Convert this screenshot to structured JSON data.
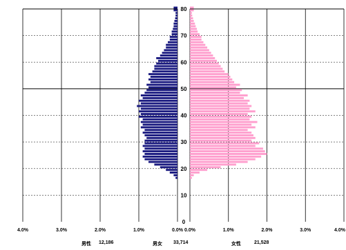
{
  "chart_data": {
    "type": "bar",
    "orientation": "horizontal",
    "layout": "population-pyramid",
    "grid": true,
    "age_ticks": [
      "0",
      "10",
      "20",
      "30",
      "40",
      "50",
      "60",
      "70",
      "80"
    ],
    "age_tick_values": [
      0,
      10,
      20,
      30,
      40,
      50,
      60,
      70,
      80
    ],
    "male_axis_ticks": [
      "4.0%",
      "3.0%",
      "2.0%",
      "1.0%",
      "0.0%"
    ],
    "female_axis_ticks": [
      "0.0%",
      "1.0%",
      "2.0%",
      "3.0%",
      "4.0%"
    ],
    "xlim_percent": [
      0,
      4
    ],
    "ylim_age": [
      0,
      80
    ],
    "colors": {
      "male": "#1a1a80",
      "female": "#ff9fce"
    },
    "series": [
      {
        "key": "male",
        "ages": [
          0,
          1,
          2,
          3,
          4,
          5,
          6,
          7,
          8,
          9,
          10,
          11,
          12,
          13,
          14,
          15,
          16,
          17,
          18,
          19,
          20,
          21,
          22,
          23,
          24,
          25,
          26,
          27,
          28,
          29,
          30,
          31,
          32,
          33,
          34,
          35,
          36,
          37,
          38,
          39,
          40,
          41,
          42,
          43,
          44,
          45,
          46,
          47,
          48,
          49,
          50,
          51,
          52,
          53,
          54,
          55,
          56,
          57,
          58,
          59,
          60,
          61,
          62,
          63,
          64,
          65,
          66,
          67,
          68,
          69,
          70,
          71,
          72,
          73,
          74,
          75,
          76,
          77,
          78,
          79,
          80
        ],
        "values": [
          0.0,
          0.0,
          0.0,
          0.0,
          0.0,
          0.0,
          0.0,
          0.0,
          0.0,
          0.0,
          0.0,
          0.0,
          0.0,
          0.0,
          0.0,
          0.0,
          0.05,
          0.1,
          0.2,
          0.3,
          0.45,
          0.6,
          0.75,
          0.85,
          0.9,
          0.85,
          0.9,
          0.85,
          0.9,
          0.85,
          0.85,
          0.8,
          0.85,
          0.9,
          0.85,
          0.95,
          0.9,
          0.95,
          0.9,
          1.0,
          0.95,
          1.0,
          0.95,
          1.05,
          0.95,
          1.0,
          0.9,
          0.95,
          0.85,
          0.8,
          0.75,
          0.8,
          0.7,
          0.75,
          0.7,
          0.75,
          0.65,
          0.6,
          0.6,
          0.55,
          0.5,
          0.55,
          0.45,
          0.4,
          0.35,
          0.3,
          0.3,
          0.25,
          0.2,
          0.2,
          0.15,
          0.15,
          0.12,
          0.1,
          0.1,
          0.08,
          0.06,
          0.05,
          0.05,
          0.1,
          0.1
        ]
      },
      {
        "key": "female",
        "ages": [
          0,
          1,
          2,
          3,
          4,
          5,
          6,
          7,
          8,
          9,
          10,
          11,
          12,
          13,
          14,
          15,
          16,
          17,
          18,
          19,
          20,
          21,
          22,
          23,
          24,
          25,
          26,
          27,
          28,
          29,
          30,
          31,
          32,
          33,
          34,
          35,
          36,
          37,
          38,
          39,
          40,
          41,
          42,
          43,
          44,
          45,
          46,
          47,
          48,
          49,
          50,
          51,
          52,
          53,
          54,
          55,
          56,
          57,
          58,
          59,
          60,
          61,
          62,
          63,
          64,
          65,
          66,
          67,
          68,
          69,
          70,
          71,
          72,
          73,
          74,
          75,
          76,
          77,
          78,
          79,
          80
        ],
        "values": [
          0.0,
          0.0,
          0.0,
          0.0,
          0.0,
          0.0,
          0.0,
          0.0,
          0.0,
          0.0,
          0.0,
          0.0,
          0.0,
          0.0,
          0.0,
          0.0,
          0.05,
          0.1,
          0.25,
          0.45,
          0.8,
          1.2,
          1.5,
          1.7,
          1.85,
          2.0,
          1.95,
          1.9,
          1.7,
          1.8,
          1.6,
          1.7,
          1.65,
          1.6,
          1.5,
          1.7,
          1.6,
          1.75,
          1.55,
          1.6,
          1.5,
          1.7,
          1.55,
          1.6,
          1.5,
          1.55,
          1.4,
          1.5,
          1.3,
          1.35,
          1.2,
          1.3,
          1.15,
          1.1,
          1.05,
          1.0,
          0.9,
          0.85,
          0.8,
          0.75,
          0.7,
          0.65,
          0.6,
          0.55,
          0.5,
          0.45,
          0.4,
          0.35,
          0.3,
          0.3,
          0.25,
          0.2,
          0.18,
          0.15,
          0.13,
          0.1,
          0.08,
          0.06,
          0.05,
          0.1,
          0.1
        ]
      }
    ]
  },
  "summary": {
    "male_label": "男性",
    "male_count": "12,186",
    "total_label": "男女",
    "total_count": "33,714",
    "female_label": "女性",
    "female_count": "21,528"
  }
}
